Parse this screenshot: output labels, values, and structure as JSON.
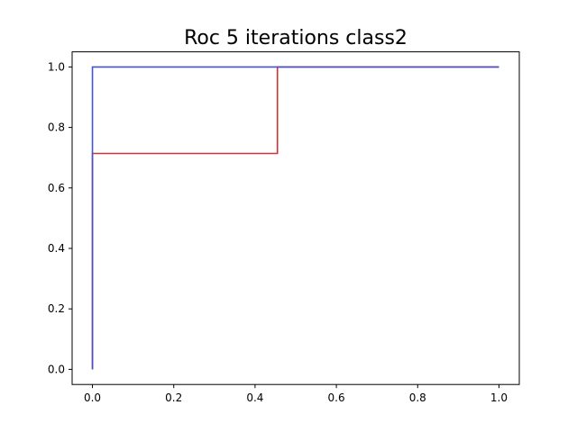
{
  "chart_data": {
    "type": "line",
    "title": "Roc 5 iterations class2",
    "xlabel": "",
    "ylabel": "",
    "xlim": [
      -0.05,
      1.05
    ],
    "ylim": [
      -0.05,
      1.05
    ],
    "x_ticks": [
      0.0,
      0.2,
      0.4,
      0.6,
      0.8,
      1.0
    ],
    "y_ticks": [
      0.0,
      0.2,
      0.4,
      0.6,
      0.8,
      1.0
    ],
    "x_tick_labels": [
      "0.0",
      "0.2",
      "0.4",
      "0.6",
      "0.8",
      "1.0"
    ],
    "y_tick_labels": [
      "0.0",
      "0.2",
      "0.4",
      "0.6",
      "0.8",
      "1.0"
    ],
    "grid": false,
    "legend": false,
    "series": [
      {
        "color": "#cc3333",
        "points": [
          [
            0.0,
            0.0
          ],
          [
            0.0,
            0.714
          ],
          [
            0.455,
            0.714
          ],
          [
            0.455,
            1.0
          ],
          [
            1.0,
            1.0
          ]
        ]
      },
      {
        "color": "#4455cc",
        "points": [
          [
            0.0,
            0.0
          ],
          [
            0.0,
            1.0
          ],
          [
            1.0,
            1.0
          ]
        ]
      }
    ]
  }
}
